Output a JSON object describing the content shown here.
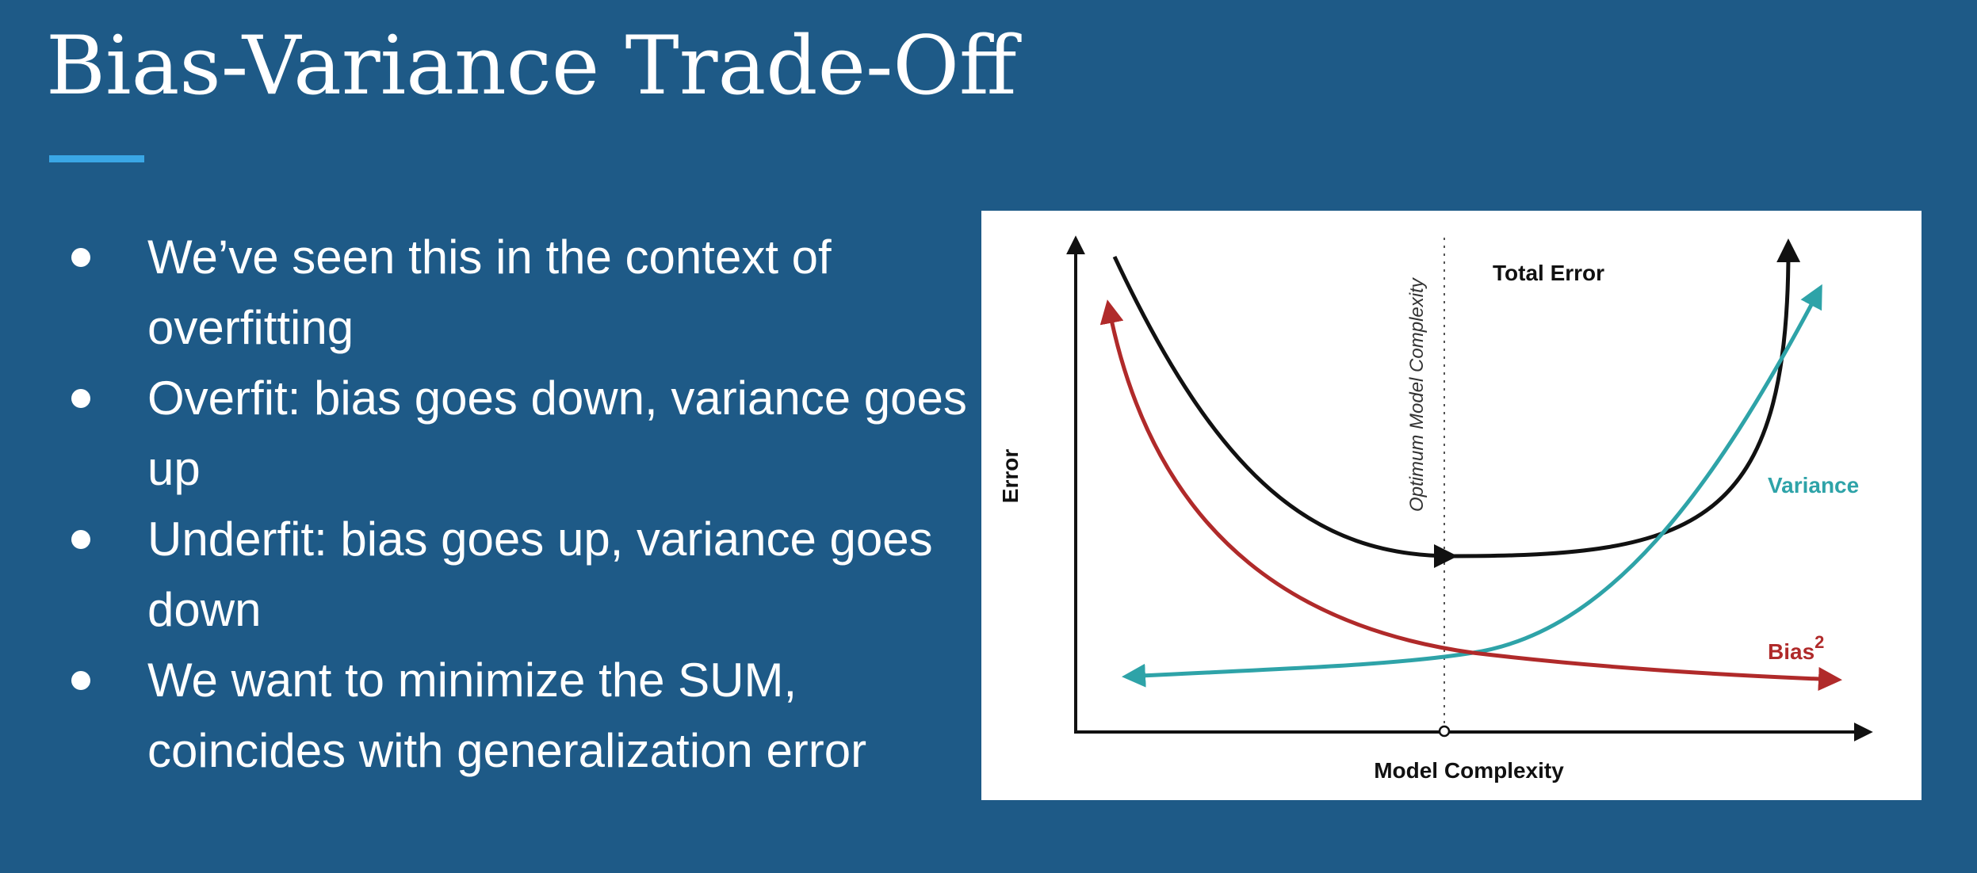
{
  "slide": {
    "title": "Bias-Variance Trade-Off",
    "accent_color": "#3aa7e6",
    "background_color": "#1e5a87"
  },
  "bullets": [
    {
      "text": "We’ve seen this in the context of overfitting"
    },
    {
      "text": "Overfit: bias goes down, variance goes up"
    },
    {
      "text": "Underfit: bias goes up, variance goes down"
    },
    {
      "text": "We want to minimize the SUM, coincides with generalization error"
    }
  ],
  "chart_data": {
    "type": "line",
    "xlabel": "Model Complexity",
    "ylabel": "Error",
    "ticks_shown": false,
    "vertical_marker": {
      "label": "Optimum Model Complexity",
      "style": "dotted"
    },
    "series": [
      {
        "name": "Total Error",
        "color": "#111111"
      },
      {
        "name": "Variance",
        "color": "#2ea3a8"
      },
      {
        "name": "Bias",
        "name_superscript": "2",
        "color": "#b02a2a"
      }
    ]
  }
}
